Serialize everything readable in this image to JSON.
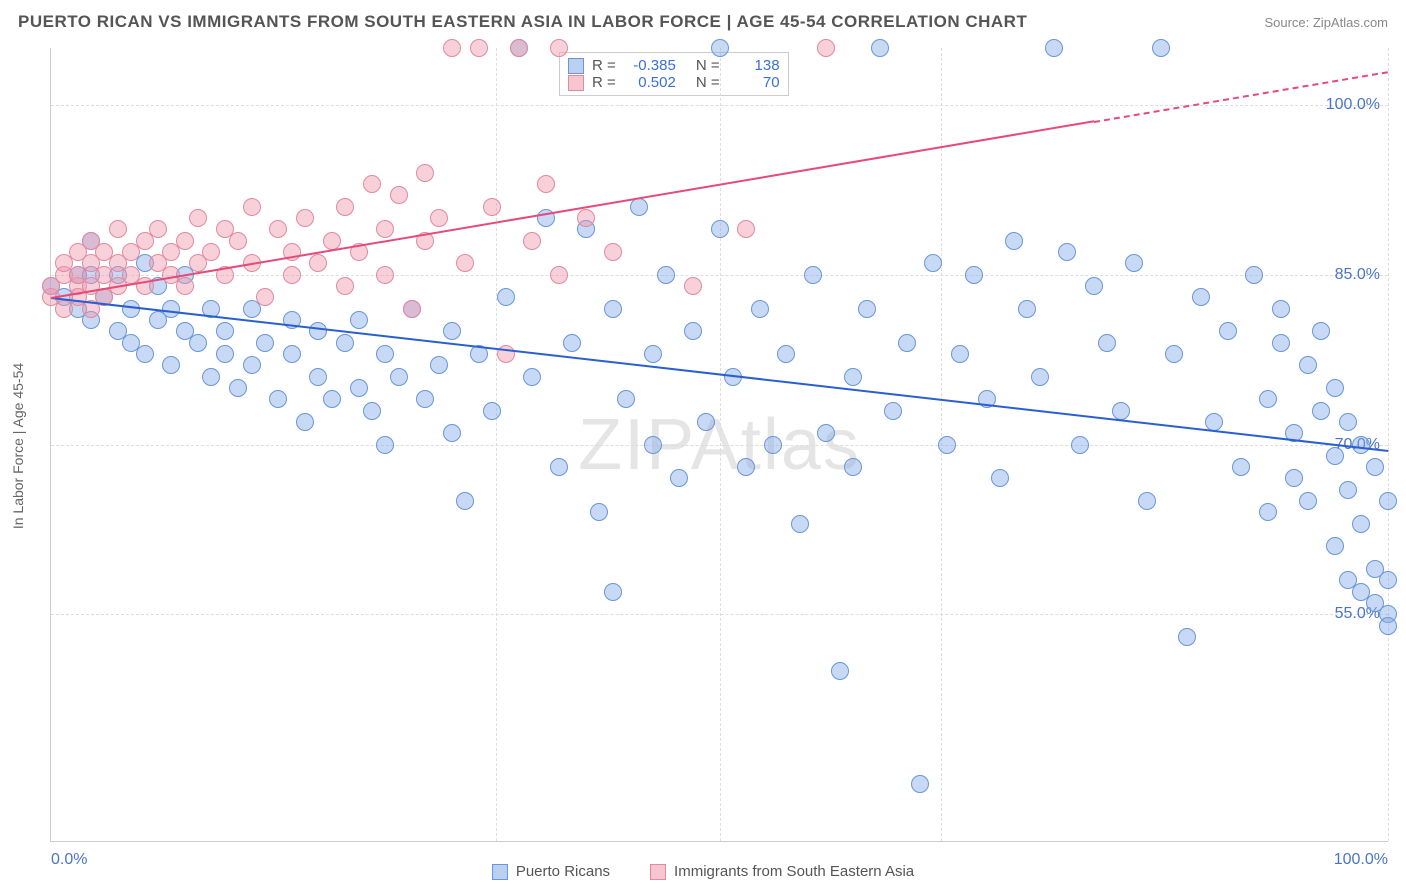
{
  "header": {
    "title": "PUERTO RICAN VS IMMIGRANTS FROM SOUTH EASTERN ASIA IN LABOR FORCE | AGE 45-54 CORRELATION CHART",
    "source": "Source: ZipAtlas.com"
  },
  "ylabel": "In Labor Force | Age 45-54",
  "watermark": "ZIPAtlas",
  "chart": {
    "type": "scatter",
    "xlim": [
      0,
      100
    ],
    "ylim": [
      35,
      105
    ],
    "background_color": "#ffffff",
    "grid_color": "#dddddd",
    "x_ticks": [
      {
        "pos": 0,
        "label": "0.0%"
      },
      {
        "pos": 100,
        "label": "100.0%"
      }
    ],
    "x_grid": [
      33.3,
      50,
      66.6,
      100
    ],
    "y_ticks": [
      {
        "pos": 55,
        "label": "55.0%"
      },
      {
        "pos": 70,
        "label": "70.0%"
      },
      {
        "pos": 85,
        "label": "85.0%"
      },
      {
        "pos": 100,
        "label": "100.0%"
      }
    ],
    "point_radius": 9,
    "series": [
      {
        "name": "Puerto Ricans",
        "color_fill": "#a6c3eb",
        "color_stroke": "#6a96d8",
        "css_class": "point-blue",
        "stats": {
          "R": "-0.385",
          "N": "138"
        },
        "regression": {
          "x1": 0,
          "y1": 83,
          "x2": 100,
          "y2": 69.5,
          "color": "#2a5fd0",
          "dash_from_x": null
        },
        "points": [
          [
            0,
            84
          ],
          [
            1,
            83
          ],
          [
            2,
            85
          ],
          [
            2,
            82
          ],
          [
            3,
            88
          ],
          [
            3,
            81
          ],
          [
            3,
            85
          ],
          [
            4,
            83
          ],
          [
            5,
            80
          ],
          [
            5,
            85
          ],
          [
            6,
            79
          ],
          [
            6,
            82
          ],
          [
            7,
            86
          ],
          [
            7,
            78
          ],
          [
            8,
            81
          ],
          [
            8,
            84
          ],
          [
            9,
            77
          ],
          [
            9,
            82
          ],
          [
            10,
            80
          ],
          [
            10,
            85
          ],
          [
            11,
            79
          ],
          [
            12,
            76
          ],
          [
            12,
            82
          ],
          [
            13,
            78
          ],
          [
            13,
            80
          ],
          [
            14,
            75
          ],
          [
            15,
            82
          ],
          [
            15,
            77
          ],
          [
            16,
            79
          ],
          [
            17,
            74
          ],
          [
            18,
            78
          ],
          [
            18,
            81
          ],
          [
            19,
            72
          ],
          [
            20,
            80
          ],
          [
            20,
            76
          ],
          [
            21,
            74
          ],
          [
            22,
            79
          ],
          [
            23,
            75
          ],
          [
            23,
            81
          ],
          [
            24,
            73
          ],
          [
            25,
            78
          ],
          [
            25,
            70
          ],
          [
            26,
            76
          ],
          [
            27,
            82
          ],
          [
            28,
            74
          ],
          [
            29,
            77
          ],
          [
            30,
            71
          ],
          [
            30,
            80
          ],
          [
            31,
            65
          ],
          [
            32,
            78
          ],
          [
            33,
            73
          ],
          [
            34,
            83
          ],
          [
            35,
            105
          ],
          [
            36,
            76
          ],
          [
            37,
            90
          ],
          [
            38,
            68
          ],
          [
            39,
            79
          ],
          [
            40,
            89
          ],
          [
            41,
            64
          ],
          [
            42,
            82
          ],
          [
            42,
            57
          ],
          [
            43,
            74
          ],
          [
            44,
            91
          ],
          [
            45,
            70
          ],
          [
            45,
            78
          ],
          [
            46,
            85
          ],
          [
            47,
            67
          ],
          [
            48,
            80
          ],
          [
            49,
            72
          ],
          [
            50,
            105
          ],
          [
            50,
            89
          ],
          [
            51,
            76
          ],
          [
            52,
            68
          ],
          [
            53,
            82
          ],
          [
            54,
            70
          ],
          [
            55,
            78
          ],
          [
            56,
            63
          ],
          [
            57,
            85
          ],
          [
            58,
            71
          ],
          [
            59,
            50
          ],
          [
            60,
            76
          ],
          [
            60,
            68
          ],
          [
            61,
            82
          ],
          [
            62,
            105
          ],
          [
            63,
            73
          ],
          [
            64,
            79
          ],
          [
            65,
            40
          ],
          [
            66,
            86
          ],
          [
            67,
            70
          ],
          [
            68,
            78
          ],
          [
            69,
            85
          ],
          [
            70,
            74
          ],
          [
            71,
            67
          ],
          [
            72,
            88
          ],
          [
            73,
            82
          ],
          [
            74,
            76
          ],
          [
            75,
            105
          ],
          [
            76,
            87
          ],
          [
            77,
            70
          ],
          [
            78,
            84
          ],
          [
            79,
            79
          ],
          [
            80,
            73
          ],
          [
            81,
            86
          ],
          [
            82,
            65
          ],
          [
            83,
            105
          ],
          [
            84,
            78
          ],
          [
            85,
            53
          ],
          [
            86,
            83
          ],
          [
            87,
            72
          ],
          [
            88,
            80
          ],
          [
            89,
            68
          ],
          [
            90,
            85
          ],
          [
            91,
            74
          ],
          [
            91,
            64
          ],
          [
            92,
            79
          ],
          [
            92,
            82
          ],
          [
            93,
            71
          ],
          [
            93,
            67
          ],
          [
            94,
            77
          ],
          [
            94,
            65
          ],
          [
            95,
            73
          ],
          [
            95,
            80
          ],
          [
            96,
            69
          ],
          [
            96,
            75
          ],
          [
            96,
            61
          ],
          [
            97,
            66
          ],
          [
            97,
            72
          ],
          [
            97,
            58
          ],
          [
            98,
            70
          ],
          [
            98,
            63
          ],
          [
            98,
            57
          ],
          [
            99,
            68
          ],
          [
            99,
            59
          ],
          [
            99,
            56
          ],
          [
            100,
            65
          ],
          [
            100,
            58
          ],
          [
            100,
            55
          ],
          [
            100,
            54
          ]
        ]
      },
      {
        "name": "Immigrants from South Eastern Asia",
        "color_fill": "#f2b3c2",
        "color_stroke": "#e08aa0",
        "css_class": "point-pink",
        "stats": {
          "R": "0.502",
          "N": "70"
        },
        "regression": {
          "x1": 0,
          "y1": 83,
          "x2": 100,
          "y2": 103,
          "color": "#e64a7a",
          "dash_from_x": 78
        },
        "points": [
          [
            0,
            83
          ],
          [
            0,
            84
          ],
          [
            1,
            85
          ],
          [
            1,
            82
          ],
          [
            1,
            86
          ],
          [
            2,
            84
          ],
          [
            2,
            87
          ],
          [
            2,
            83
          ],
          [
            2,
            85
          ],
          [
            3,
            86
          ],
          [
            3,
            82
          ],
          [
            3,
            88
          ],
          [
            3,
            84
          ],
          [
            4,
            85
          ],
          [
            4,
            87
          ],
          [
            4,
            83
          ],
          [
            5,
            86
          ],
          [
            5,
            89
          ],
          [
            5,
            84
          ],
          [
            6,
            87
          ],
          [
            6,
            85
          ],
          [
            7,
            88
          ],
          [
            7,
            84
          ],
          [
            8,
            86
          ],
          [
            8,
            89
          ],
          [
            9,
            85
          ],
          [
            9,
            87
          ],
          [
            10,
            88
          ],
          [
            10,
            84
          ],
          [
            11,
            86
          ],
          [
            11,
            90
          ],
          [
            12,
            87
          ],
          [
            13,
            85
          ],
          [
            13,
            89
          ],
          [
            14,
            88
          ],
          [
            15,
            86
          ],
          [
            15,
            91
          ],
          [
            16,
            83
          ],
          [
            17,
            89
          ],
          [
            18,
            85
          ],
          [
            18,
            87
          ],
          [
            19,
            90
          ],
          [
            20,
            86
          ],
          [
            21,
            88
          ],
          [
            22,
            84
          ],
          [
            22,
            91
          ],
          [
            23,
            87
          ],
          [
            24,
            93
          ],
          [
            25,
            85
          ],
          [
            25,
            89
          ],
          [
            26,
            92
          ],
          [
            27,
            82
          ],
          [
            28,
            94
          ],
          [
            28,
            88
          ],
          [
            29,
            90
          ],
          [
            30,
            105
          ],
          [
            31,
            86
          ],
          [
            32,
            105
          ],
          [
            33,
            91
          ],
          [
            34,
            78
          ],
          [
            35,
            105
          ],
          [
            36,
            88
          ],
          [
            37,
            93
          ],
          [
            38,
            85
          ],
          [
            38,
            105
          ],
          [
            40,
            90
          ],
          [
            42,
            87
          ],
          [
            48,
            84
          ],
          [
            52,
            89
          ],
          [
            58,
            105
          ]
        ]
      }
    ]
  },
  "footer_legend": [
    {
      "swatch": "sw-blue",
      "label": "Puerto Ricans"
    },
    {
      "swatch": "sw-pink",
      "label": "Immigrants from South Eastern Asia"
    }
  ],
  "legend_stats": {
    "R_label": "R =",
    "N_label": "N ="
  }
}
